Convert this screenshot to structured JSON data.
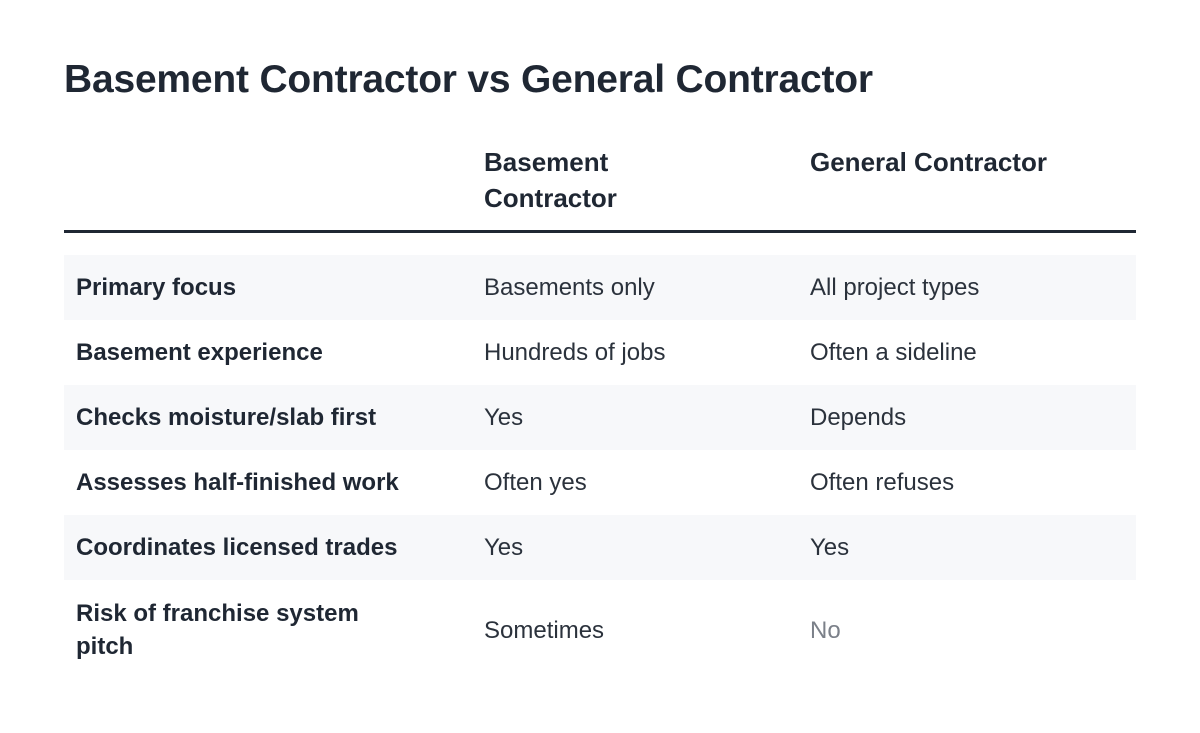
{
  "title": "Basement Contractor vs General Contractor",
  "table": {
    "columns": [
      "",
      "Basement Contractor",
      "General Contractor"
    ],
    "rows": [
      {
        "label": "Primary focus",
        "basement": "Basements only",
        "general": "All project types"
      },
      {
        "label": "Basement experience",
        "basement": "Hundreds of jobs",
        "general": "Often a sideline"
      },
      {
        "label": "Checks moisture/slab first",
        "basement": "Yes",
        "general": "Depends"
      },
      {
        "label": "Assesses half-finished work",
        "basement": "Often yes",
        "general": "Often refuses"
      },
      {
        "label": "Coordinates licensed trades",
        "basement": "Yes",
        "general": "Yes"
      },
      {
        "label": "Risk of franchise system pitch",
        "basement": "Sometimes",
        "general": "No"
      }
    ]
  },
  "colors": {
    "text": "#1f2733",
    "row_shade": "#f7f8fa",
    "muted": "#7b8089"
  }
}
